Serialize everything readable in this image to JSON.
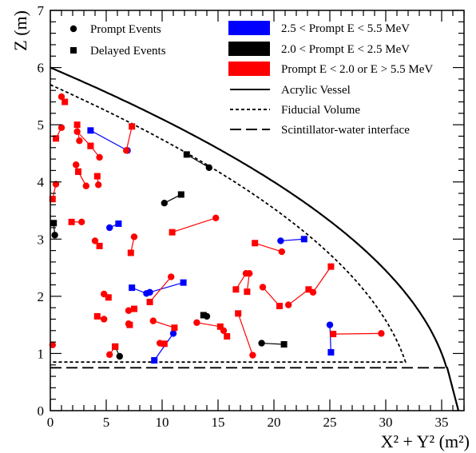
{
  "chart_data": {
    "type": "scatter",
    "xlabel": "X² + Y² (m²)",
    "ylabel": "Z (m)",
    "xlim": [
      0,
      37
    ],
    "ylim": [
      0,
      7
    ],
    "x_ticks": [
      0,
      5,
      10,
      15,
      20,
      25,
      30,
      35
    ],
    "y_ticks": [
      0,
      1,
      2,
      3,
      4,
      5,
      6,
      7
    ],
    "legend_markers": [
      {
        "label": "Prompt Events",
        "marker": "circle"
      },
      {
        "label": "Delayed Events",
        "marker": "square"
      }
    ],
    "legend_categories": [
      {
        "label": "2.5 < Prompt E < 5.5 MeV",
        "color": "#0000ff"
      },
      {
        "label": "2.0 < Prompt E < 2.5 MeV",
        "color": "#000000"
      },
      {
        "label": "Prompt E < 2.0 or E > 5.5 MeV",
        "color": "#ff0000"
      }
    ],
    "legend_lines": [
      {
        "label": "Acrylic Vessel",
        "dash": "solid"
      },
      {
        "label": "Fiducial Volume",
        "dash": "short-dash"
      },
      {
        "label": "Scintillator-water interface",
        "dash": "long-dash"
      }
    ],
    "acrylic_vessel": {
      "radius": 6.0,
      "neck_z": 0.75,
      "base_r2_top": 35.5,
      "base_r2_bottom": 36.5
    },
    "fiducial_volume": {
      "radius": 5.7,
      "z_min": 0.85
    },
    "scintillator_water_interface": {
      "z": 0.75,
      "x_max": 35.5
    },
    "pairs": [
      {
        "color": "blue",
        "prompt": [
          6.9,
          4.55
        ],
        "delayed": [
          3.6,
          4.9
        ]
      },
      {
        "color": "blue",
        "prompt": [
          5.3,
          3.2
        ],
        "delayed": [
          6.1,
          3.27
        ]
      },
      {
        "color": "blue",
        "prompt": [
          8.6,
          2.05
        ],
        "delayed": [
          7.3,
          2.15
        ]
      },
      {
        "color": "blue",
        "prompt": [
          8.9,
          2.07
        ],
        "delayed": [
          11.9,
          2.24
        ]
      },
      {
        "color": "blue",
        "prompt": [
          11.0,
          1.35
        ],
        "delayed": [
          9.3,
          0.88
        ]
      },
      {
        "color": "blue",
        "prompt": [
          20.6,
          2.97
        ],
        "delayed": [
          22.7,
          3.0
        ]
      },
      {
        "color": "blue",
        "prompt": [
          25.0,
          1.5
        ],
        "delayed": [
          25.1,
          1.02
        ]
      },
      {
        "color": "black",
        "prompt": [
          0.4,
          3.07
        ],
        "delayed": [
          0.3,
          3.28
        ]
      },
      {
        "color": "black",
        "prompt": [
          10.2,
          3.63
        ],
        "delayed": [
          11.7,
          3.78
        ]
      },
      {
        "color": "black",
        "prompt": [
          14.2,
          4.25
        ],
        "delayed": [
          12.2,
          4.48
        ]
      },
      {
        "color": "black",
        "prompt": [
          6.2,
          0.95
        ],
        "delayed": [
          5.8,
          1.12
        ]
      },
      {
        "color": "black",
        "prompt": [
          14.0,
          1.65
        ],
        "delayed": [
          13.7,
          1.67
        ]
      },
      {
        "color": "black",
        "prompt": [
          18.9,
          1.18
        ],
        "delayed": [
          20.9,
          1.16
        ]
      },
      {
        "color": "red",
        "prompt": [
          1.0,
          5.49
        ],
        "delayed": [
          1.3,
          5.4
        ]
      },
      {
        "color": "red",
        "prompt": [
          1.0,
          4.95
        ],
        "delayed": [
          0.5,
          4.76
        ]
      },
      {
        "color": "red",
        "prompt": [
          0.5,
          3.96
        ],
        "delayed": [
          0.2,
          3.7
        ]
      },
      {
        "color": "red",
        "prompt": [
          2.6,
          4.72
        ],
        "delayed": [
          2.4,
          5.0
        ]
      },
      {
        "color": "red",
        "prompt": [
          2.4,
          4.88
        ],
        "delayed": [
          3.6,
          4.63
        ]
      },
      {
        "color": "red",
        "prompt": [
          4.4,
          4.43
        ],
        "delayed": [
          3.6,
          4.63
        ]
      },
      {
        "color": "red",
        "prompt": [
          2.3,
          4.3
        ],
        "delayed": [
          2.5,
          4.18
        ]
      },
      {
        "color": "red",
        "prompt": [
          3.2,
          3.93
        ],
        "delayed": [
          2.5,
          4.18
        ]
      },
      {
        "color": "red",
        "prompt": [
          4.3,
          3.95
        ],
        "delayed": [
          4.2,
          4.1
        ]
      },
      {
        "color": "red",
        "prompt": [
          2.8,
          3.3
        ],
        "delayed": [
          1.9,
          3.3
        ]
      },
      {
        "color": "red",
        "prompt": [
          4.0,
          2.97
        ],
        "delayed": [
          4.4,
          2.88
        ]
      },
      {
        "color": "red",
        "prompt": [
          6.8,
          4.55
        ],
        "delayed": [
          7.3,
          4.97
        ]
      },
      {
        "color": "red",
        "prompt": [
          7.5,
          3.04
        ],
        "delayed": [
          7.2,
          2.76
        ]
      },
      {
        "color": "red",
        "prompt": [
          14.8,
          3.37
        ],
        "delayed": [
          10.9,
          3.12
        ]
      },
      {
        "color": "red",
        "prompt": [
          4.8,
          2.04
        ],
        "delayed": [
          5.2,
          1.98
        ]
      },
      {
        "color": "red",
        "prompt": [
          10.8,
          2.34
        ],
        "delayed": [
          8.9,
          1.9
        ]
      },
      {
        "color": "red",
        "prompt": [
          7.0,
          1.75
        ],
        "delayed": [
          7.5,
          1.78
        ]
      },
      {
        "color": "red",
        "prompt": [
          4.8,
          1.6
        ],
        "delayed": [
          4.2,
          1.65
        ]
      },
      {
        "color": "red",
        "prompt": [
          7.0,
          1.52
        ],
        "delayed": [
          7.1,
          1.5
        ]
      },
      {
        "color": "red",
        "prompt": [
          5.3,
          0.98
        ],
        "delayed": [
          5.8,
          1.12
        ]
      },
      {
        "color": "red",
        "prompt": [
          9.2,
          1.57
        ],
        "delayed": [
          11.1,
          1.45
        ]
      },
      {
        "color": "red",
        "prompt": [
          9.8,
          1.18
        ],
        "delayed": [
          10.2,
          1.17
        ]
      },
      {
        "color": "red",
        "prompt": [
          13.1,
          1.54
        ],
        "delayed": [
          15.2,
          1.47
        ]
      },
      {
        "color": "red",
        "prompt": [
          15.5,
          1.4
        ],
        "delayed": [
          15.8,
          1.3
        ]
      },
      {
        "color": "red",
        "prompt": [
          17.5,
          2.4
        ],
        "delayed": [
          16.6,
          2.12
        ]
      },
      {
        "color": "red",
        "prompt": [
          17.8,
          2.4
        ],
        "delayed": [
          17.6,
          2.08
        ]
      },
      {
        "color": "red",
        "prompt": [
          18.1,
          0.97
        ],
        "delayed": [
          16.8,
          1.7
        ]
      },
      {
        "color": "red",
        "prompt": [
          19.0,
          2.16
        ],
        "delayed": [
          20.5,
          1.83
        ]
      },
      {
        "color": "red",
        "prompt": [
          20.7,
          2.78
        ],
        "delayed": [
          18.3,
          2.93
        ]
      },
      {
        "color": "red",
        "prompt": [
          21.3,
          1.85
        ],
        "delayed": [
          23.1,
          2.12
        ]
      },
      {
        "color": "red",
        "prompt": [
          23.5,
          2.07
        ],
        "delayed": [
          25.1,
          2.52
        ]
      },
      {
        "color": "red",
        "prompt": [
          29.6,
          1.35
        ],
        "delayed": [
          25.3,
          1.34
        ]
      },
      {
        "color": "red",
        "prompt": [
          0.2,
          1.15
        ],
        "delayed": null
      }
    ]
  }
}
